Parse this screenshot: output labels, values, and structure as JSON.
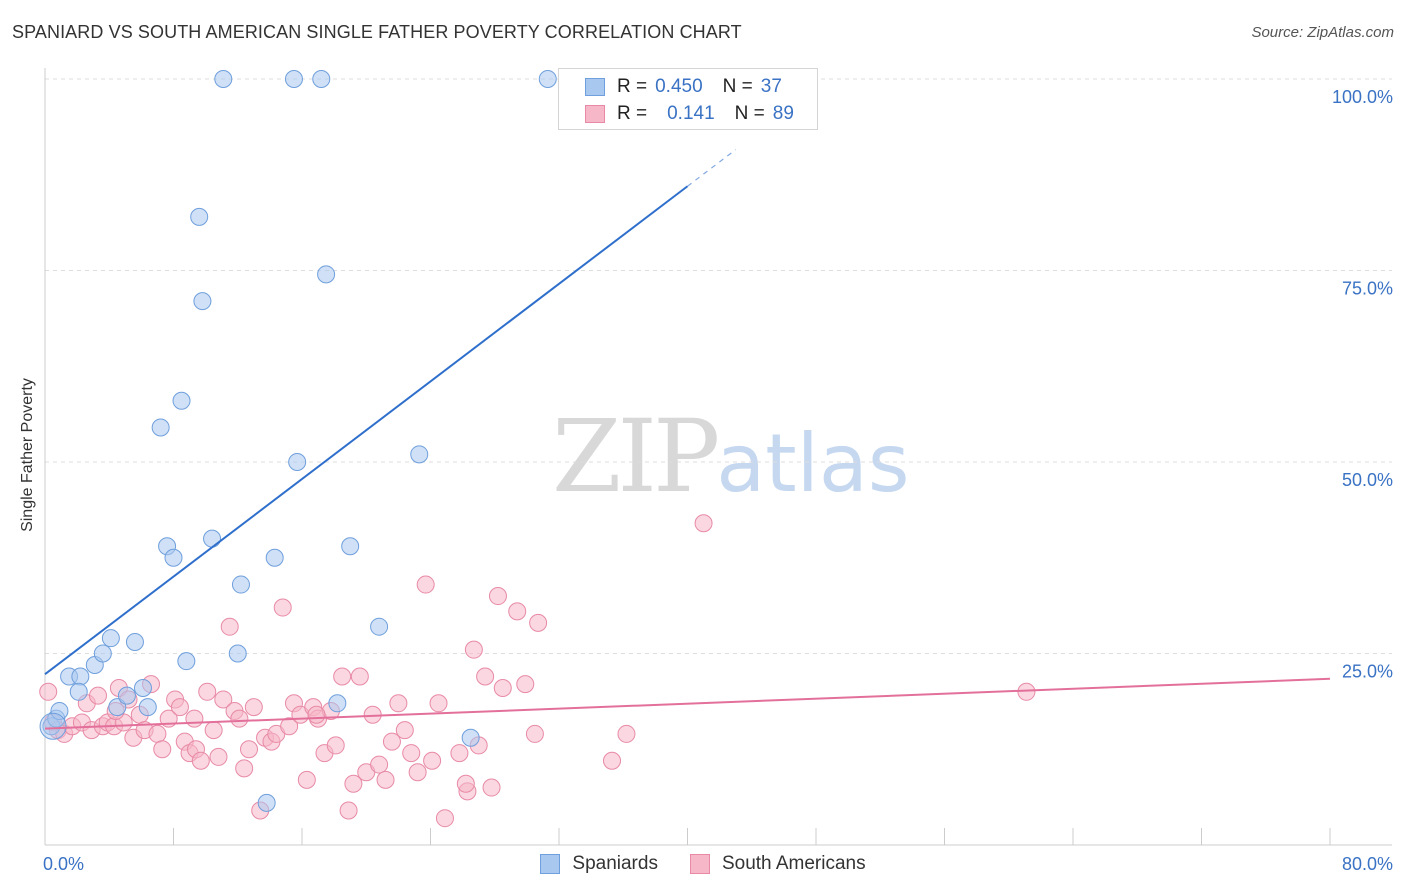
{
  "header": {
    "title": "SPANIARD VS SOUTH AMERICAN SINGLE FATHER POVERTY CORRELATION CHART",
    "source": "Source: ZipAtlas.com"
  },
  "watermark": {
    "zip": "ZIP",
    "atlas": "atlas"
  },
  "stats": [
    {
      "r_label": "R =",
      "r_value": "0.450",
      "n_label": "N =",
      "n_value": "37"
    },
    {
      "r_label": "R =",
      "r_value": "0.141",
      "n_label": "N =",
      "n_value": "89"
    }
  ],
  "legend": {
    "items": [
      "Spaniards",
      "South Americans"
    ]
  },
  "colors": {
    "spaniards_fill": "#a9c8f0",
    "spaniards_stroke": "#6f9fdc",
    "spaniards_line": "#2f6fcc",
    "south_fill": "#f6b7c9",
    "south_stroke": "#e88aa6",
    "south_line": "#e3709a",
    "tick_label": "#3a72c4",
    "grid": "#dddddd"
  },
  "chart_data": {
    "type": "scatter",
    "title": "SPANIARD VS SOUTH AMERICAN SINGLE FATHER POVERTY CORRELATION CHART",
    "xlabel": "",
    "ylabel": "Single Father Poverty",
    "xlim": [
      0,
      80
    ],
    "ylim": [
      0,
      100
    ],
    "x_tick_labels": [
      "0.0%",
      "80.0%"
    ],
    "y_ticks": [
      25,
      50,
      75,
      100
    ],
    "y_tick_labels": [
      "25.0%",
      "50.0%",
      "75.0%",
      "100.0%"
    ],
    "grid": true,
    "legend_position": "bottom-center",
    "series": [
      {
        "name": "Spaniards",
        "r": 0.45,
        "n": 37,
        "trend": {
          "x0": 0,
          "y0": 22.3,
          "x1": 40,
          "y1": 86,
          "dashed_to_x": 43
        },
        "points": [
          [
            0.4,
            15.5
          ],
          [
            0.7,
            16.5
          ],
          [
            0.9,
            17.5
          ],
          [
            1.5,
            22
          ],
          [
            2.2,
            22
          ],
          [
            2.1,
            20
          ],
          [
            3.1,
            23.5
          ],
          [
            3.6,
            25
          ],
          [
            4.1,
            27
          ],
          [
            4.5,
            18
          ],
          [
            5.1,
            19.5
          ],
          [
            5.6,
            26.5
          ],
          [
            6.1,
            20.5
          ],
          [
            6.4,
            18
          ],
          [
            7.2,
            54.5
          ],
          [
            7.6,
            39
          ],
          [
            8,
            37.5
          ],
          [
            8.5,
            58
          ],
          [
            8.8,
            24
          ],
          [
            9.6,
            82
          ],
          [
            9.8,
            71
          ],
          [
            10.4,
            40
          ],
          [
            11.1,
            100
          ],
          [
            12,
            25
          ],
          [
            12.2,
            34
          ],
          [
            13.8,
            5.5
          ],
          [
            14.3,
            37.5
          ],
          [
            15.5,
            100
          ],
          [
            15.7,
            50
          ],
          [
            17.2,
            100
          ],
          [
            17.5,
            74.5
          ],
          [
            18.2,
            18.5
          ],
          [
            19,
            39
          ],
          [
            20.8,
            28.5
          ],
          [
            23.3,
            51
          ],
          [
            26.5,
            14
          ],
          [
            31.3,
            100
          ]
        ]
      },
      {
        "name": "South Americans",
        "r": 0.141,
        "n": 89,
        "trend": {
          "x0": 0,
          "y0": 15.2,
          "x1": 80,
          "y1": 21.7
        },
        "points": [
          [
            0.2,
            20
          ],
          [
            0.5,
            16
          ],
          [
            0.8,
            15
          ],
          [
            1.2,
            14.5
          ],
          [
            1.7,
            15.5
          ],
          [
            2.3,
            16
          ],
          [
            2.6,
            18.5
          ],
          [
            2.9,
            15
          ],
          [
            3.3,
            19.5
          ],
          [
            3.6,
            15.5
          ],
          [
            3.9,
            16
          ],
          [
            4.3,
            15.5
          ],
          [
            4.6,
            20.5
          ],
          [
            4.9,
            16
          ],
          [
            5.2,
            19
          ],
          [
            5.5,
            14
          ],
          [
            5.9,
            17
          ],
          [
            6.2,
            15
          ],
          [
            6.6,
            21
          ],
          [
            7,
            14.5
          ],
          [
            7.3,
            12.5
          ],
          [
            7.7,
            16.5
          ],
          [
            8.1,
            19
          ],
          [
            8.4,
            18
          ],
          [
            8.7,
            13.5
          ],
          [
            9,
            12
          ],
          [
            9.4,
            12.5
          ],
          [
            9.7,
            11
          ],
          [
            10.1,
            20
          ],
          [
            10.5,
            15
          ],
          [
            10.8,
            11.5
          ],
          [
            11.1,
            19
          ],
          [
            11.5,
            28.5
          ],
          [
            11.8,
            17.5
          ],
          [
            12.1,
            16.5
          ],
          [
            12.4,
            10
          ],
          [
            12.7,
            12.5
          ],
          [
            13,
            18
          ],
          [
            13.4,
            4.5
          ],
          [
            13.7,
            14
          ],
          [
            14.1,
            13.5
          ],
          [
            14.4,
            14.5
          ],
          [
            14.8,
            31
          ],
          [
            15.2,
            15.5
          ],
          [
            15.5,
            18.5
          ],
          [
            15.9,
            17
          ],
          [
            16.3,
            8.5
          ],
          [
            16.7,
            18
          ],
          [
            17,
            16.5
          ],
          [
            17.4,
            12
          ],
          [
            17.8,
            17.5
          ],
          [
            18.1,
            13
          ],
          [
            18.5,
            22
          ],
          [
            18.9,
            4.5
          ],
          [
            19.2,
            8
          ],
          [
            19.6,
            22
          ],
          [
            20,
            9.5
          ],
          [
            20.4,
            17
          ],
          [
            20.8,
            10.5
          ],
          [
            21.2,
            8.5
          ],
          [
            21.6,
            13.5
          ],
          [
            22,
            18.5
          ],
          [
            22.4,
            15
          ],
          [
            22.8,
            12
          ],
          [
            23.2,
            9.5
          ],
          [
            23.7,
            34
          ],
          [
            24.1,
            11
          ],
          [
            24.5,
            18.5
          ],
          [
            24.9,
            3.5
          ],
          [
            25.8,
            12
          ],
          [
            26.3,
            7
          ],
          [
            26.7,
            25.5
          ],
          [
            27,
            13
          ],
          [
            27.4,
            22
          ],
          [
            27.8,
            7.5
          ],
          [
            28.2,
            32.5
          ],
          [
            29.4,
            30.5
          ],
          [
            29.9,
            21
          ],
          [
            30.5,
            14.5
          ],
          [
            30.7,
            29
          ],
          [
            35.3,
            11
          ],
          [
            36.2,
            14.5
          ],
          [
            41,
            42
          ],
          [
            61.1,
            20
          ],
          [
            4.4,
            17.5
          ],
          [
            9.3,
            16.5
          ],
          [
            16.9,
            17
          ],
          [
            26.2,
            8
          ],
          [
            28.5,
            20.5
          ]
        ]
      }
    ]
  }
}
